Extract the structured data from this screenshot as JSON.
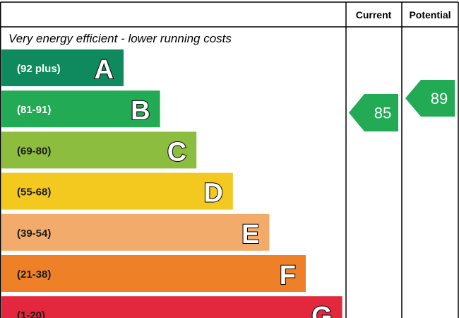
{
  "chart_data": {
    "type": "bar",
    "headers": {
      "current": "Current",
      "potential": "Potential"
    },
    "top_note": "Very energy efficient - lower running costs",
    "bands": [
      {
        "letter": "A",
        "range": "(92 plus)",
        "color": "#0f8a5f",
        "range_color": "#ffffff"
      },
      {
        "letter": "B",
        "range": "(81-91)",
        "color": "#22aa55",
        "range_color": "#ffffff"
      },
      {
        "letter": "C",
        "range": "(69-80)",
        "color": "#8dbd3f",
        "range_color": "#1a1a1a"
      },
      {
        "letter": "D",
        "range": "(55-68)",
        "color": "#f4c91f",
        "range_color": "#1a1a1a"
      },
      {
        "letter": "E",
        "range": "(39-54)",
        "color": "#f2ab6a",
        "range_color": "#1a1a1a"
      },
      {
        "letter": "F",
        "range": "(21-38)",
        "color": "#ee8127",
        "range_color": "#1a1a1a"
      },
      {
        "letter": "G",
        "range": "(1-20)",
        "color": "#e3283e",
        "range_color": "#1a1a1a"
      }
    ],
    "current": {
      "value": "85",
      "band": "B",
      "color": "#22aa55"
    },
    "potential": {
      "value": "89",
      "band": "B",
      "color": "#22aa55"
    }
  }
}
